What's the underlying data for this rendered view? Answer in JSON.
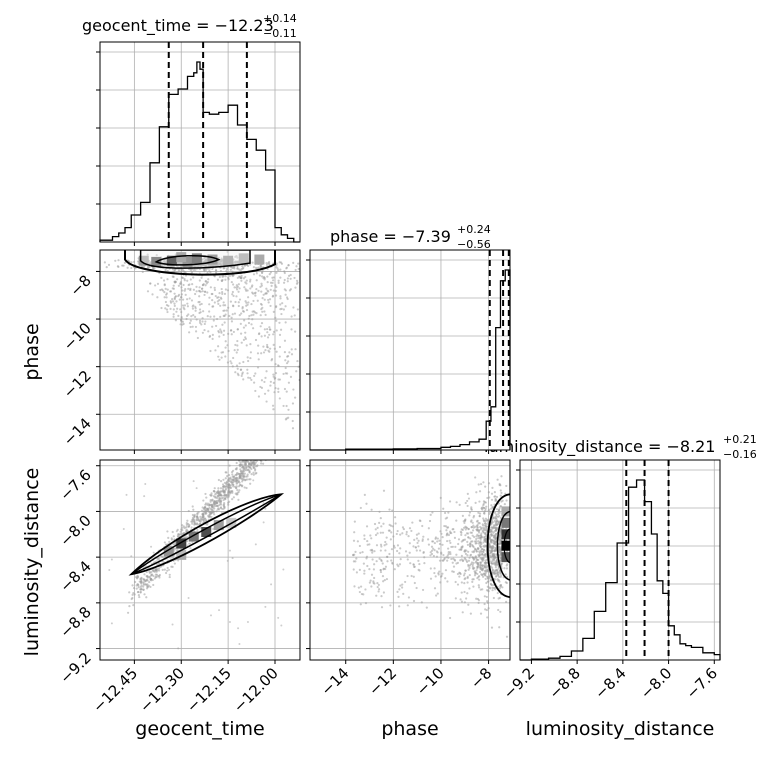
{
  "chart_data": {
    "type": "corner",
    "parameters": [
      "geocent_time",
      "phase",
      "luminosity_distance"
    ],
    "titles": [
      {
        "name": "geocent_time",
        "median": "−12.23",
        "plus": "+0.14",
        "minus": "−0.11"
      },
      {
        "name": "phase",
        "median": "−7.39",
        "plus": "+0.24",
        "minus": "−0.56"
      },
      {
        "name": "luminosity_distance",
        "median": "−8.21",
        "plus": "+0.21",
        "minus": "−0.16"
      }
    ],
    "ranges": {
      "geocent_time": [
        -12.56,
        -11.92
      ],
      "phase": [
        -15.5,
        -7.1
      ],
      "luminosity_distance": [
        -9.3,
        -7.55
      ]
    },
    "ticks": {
      "geocent_time": {
        "values": [
          -12.45,
          -12.3,
          -12.15,
          -12.0
        ],
        "labels": [
          "−12.45",
          "−12.30",
          "−12.15",
          "−12.00"
        ]
      },
      "phase": {
        "values": [
          -14,
          -12,
          -10,
          -8
        ],
        "labels": [
          "−14",
          "−12",
          "−10",
          "−8"
        ]
      },
      "luminosity_distance": {
        "values": [
          -9.2,
          -8.8,
          -8.4,
          -8.0,
          -7.6
        ],
        "labels": [
          "−9.2",
          "−8.8",
          "−8.4",
          "−8.0",
          "−7.6"
        ]
      }
    },
    "quantiles": {
      "geocent_time": [
        -12.34,
        -12.23,
        -12.09
      ],
      "phase": [
        -7.95,
        -7.39,
        -7.15
      ],
      "luminosity_distance": [
        -8.37,
        -8.21,
        -8.0
      ]
    },
    "histograms": {
      "geocent_time": {
        "edges": [
          -12.56,
          -12.52,
          -12.5,
          -12.48,
          -12.46,
          -12.43,
          -12.4,
          -12.37,
          -12.34,
          -12.31,
          -12.28,
          -12.26,
          -12.25,
          -12.24,
          -12.23,
          -12.21,
          -12.18,
          -12.15,
          -12.12,
          -12.09,
          -12.06,
          -12.03,
          -12.0,
          -11.98,
          -11.96,
          -11.94,
          -11.92
        ],
        "counts": [
          1,
          3,
          5,
          8,
          15,
          22,
          44,
          64,
          82,
          85,
          92,
          94,
          100,
          96,
          72,
          71,
          72,
          76,
          65,
          57,
          51,
          40,
          8,
          4,
          2,
          0
        ]
      },
      "phase": {
        "edges": [
          -15.5,
          -14.0,
          -12.0,
          -11.0,
          -10.0,
          -9.6,
          -9.2,
          -8.8,
          -8.4,
          -8.1,
          -7.9,
          -7.7,
          -7.5,
          -7.3,
          -7.1
        ],
        "counts": [
          0,
          0.5,
          0.6,
          0.8,
          1.5,
          2,
          3,
          4.5,
          6,
          16,
          24,
          68,
          94,
          100
        ]
      },
      "luminosity_distance": {
        "edges": [
          -9.3,
          -9.2,
          -9.05,
          -8.95,
          -8.85,
          -8.75,
          -8.65,
          -8.55,
          -8.45,
          -8.35,
          -8.28,
          -8.21,
          -8.15,
          -8.1,
          -8.05,
          -8.0,
          -7.95,
          -7.9,
          -7.85,
          -7.8,
          -7.7,
          -7.6,
          -7.55
        ],
        "counts": [
          0,
          0.5,
          1,
          2,
          5,
          12,
          27,
          43,
          65,
          96,
          100,
          88,
          70,
          44,
          37,
          19,
          14,
          9,
          8,
          7,
          4,
          3
        ]
      }
    },
    "joint": {
      "phase_vs_geocent_time": {
        "x_center": -12.3,
        "y_center": -7.55,
        "x_spread": 0.07,
        "y_spread": 0.12,
        "tail_y_min": -15.2
      },
      "luminosity_distance_vs_geocent_time": {
        "slope": 3.0,
        "intercept_at": [
          -12.3,
          -8.25
        ],
        "spread": 0.04
      },
      "luminosity_distance_vs_phase": {
        "x_center": -7.45,
        "y_center": -8.3,
        "x_spread": 0.35,
        "y_spread": 0.15
      }
    },
    "grid": true,
    "colors": {
      "hist": "#000000",
      "points": "#9e9e9e",
      "grid": "#b0b0b0",
      "contour": "#000000"
    }
  }
}
